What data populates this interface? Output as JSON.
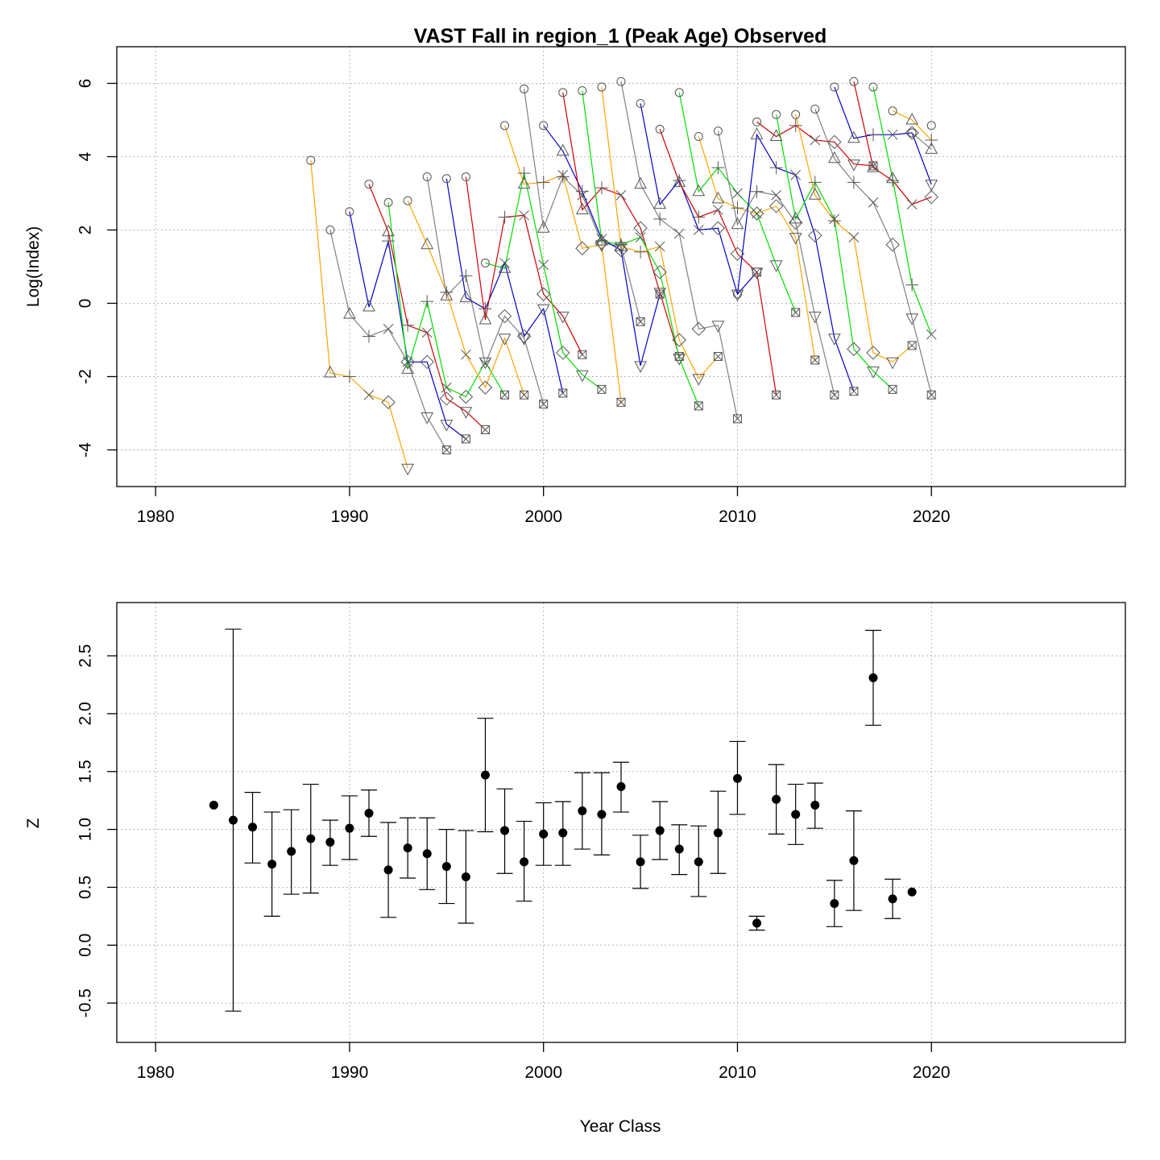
{
  "chart_data": [
    {
      "type": "line",
      "title": "VAST Fall in region_1 (Peak Age) Observed",
      "xlabel": "",
      "ylabel": "Log(Index)",
      "xlim": [
        1978,
        2030
      ],
      "ylim": [
        -5.0,
        7.0
      ],
      "xticks": [
        1980,
        1990,
        2000,
        2010,
        2020
      ],
      "yticks": [
        -4,
        -2,
        0,
        2,
        4,
        6
      ],
      "grid": true,
      "marker_sequence": [
        "circle",
        "triangle-up",
        "plus",
        "x",
        "diamond",
        "triangle-down",
        "boxed-x",
        "asterisk"
      ],
      "series": [
        {
          "color": "#FFA500",
          "x": [
            1988,
            1989,
            1990,
            1991,
            1992,
            1993
          ],
          "y": [
            3.9,
            -1.9,
            -2.0,
            -2.5,
            -2.7,
            -4.5
          ]
        },
        {
          "color": "#808080",
          "x": [
            1989,
            1990,
            1991,
            1992,
            1993,
            1994,
            1995
          ],
          "y": [
            2.0,
            -0.3,
            -0.9,
            -0.7,
            -1.6,
            -3.1,
            -4.0
          ]
        },
        {
          "color": "#0000CD",
          "x": [
            1990,
            1991,
            1992,
            1993,
            1994,
            1995,
            1996
          ],
          "y": [
            2.5,
            -0.1,
            1.7,
            -1.6,
            -1.6,
            -3.3,
            -3.7
          ]
        },
        {
          "color": "#D00000",
          "x": [
            1991,
            1992,
            1993,
            1994,
            1995,
            1996,
            1997
          ],
          "y": [
            3.25,
            1.95,
            -0.6,
            -0.8,
            -2.6,
            -2.95,
            -3.45
          ]
        },
        {
          "color": "#00DD00",
          "x": [
            1992,
            1993,
            1994,
            1995,
            1996,
            1997,
            1998
          ],
          "y": [
            2.75,
            -1.8,
            0.05,
            -2.3,
            -2.55,
            -1.6,
            -2.5
          ]
        },
        {
          "color": "#FFA500",
          "x": [
            1993,
            1994,
            1995,
            1996,
            1997,
            1998,
            1999
          ],
          "y": [
            2.8,
            1.6,
            0.3,
            -1.4,
            -2.3,
            -0.95,
            -2.5
          ]
        },
        {
          "color": "#808080",
          "x": [
            1994,
            1995,
            1996,
            1997,
            1998,
            1999,
            2000
          ],
          "y": [
            3.45,
            0.2,
            0.75,
            -1.65,
            -0.35,
            -0.95,
            -2.75
          ]
        },
        {
          "color": "#0000CD",
          "x": [
            1995,
            1996,
            1997,
            1998,
            1999,
            2000,
            2001
          ],
          "y": [
            3.4,
            0.15,
            -0.15,
            1.1,
            -0.9,
            -0.15,
            -2.45
          ]
        },
        {
          "color": "#D00000",
          "x": [
            1996,
            1997,
            1998,
            1999,
            2000,
            2001,
            2002
          ],
          "y": [
            3.45,
            -0.45,
            2.35,
            2.4,
            0.25,
            -0.35,
            -1.4
          ]
        },
        {
          "color": "#00DD00",
          "x": [
            1997,
            1998,
            1999,
            2000,
            2001,
            2002,
            2003
          ],
          "y": [
            1.1,
            0.95,
            3.55,
            1.05,
            -1.35,
            -1.95,
            -2.35
          ]
        },
        {
          "color": "#FFA500",
          "x": [
            1998,
            1999,
            2000,
            2001,
            2002,
            2003,
            2004
          ],
          "y": [
            4.85,
            3.25,
            3.3,
            3.5,
            1.5,
            1.6,
            -2.7
          ]
        },
        {
          "color": "#808080",
          "x": [
            1999,
            2000,
            2001,
            2002,
            2003,
            2004,
            2005
          ],
          "y": [
            5.85,
            2.05,
            3.45,
            2.95,
            1.65,
            1.55,
            -0.5
          ]
        },
        {
          "color": "#0000CD",
          "x": [
            2000,
            2001,
            2002,
            2003,
            2004,
            2005,
            2006
          ],
          "y": [
            4.85,
            4.15,
            3.05,
            1.75,
            1.45,
            -1.7,
            0.25
          ]
        },
        {
          "color": "#D00000",
          "x": [
            2001,
            2002,
            2003,
            2004,
            2005,
            2006,
            2007
          ],
          "y": [
            5.75,
            2.55,
            3.15,
            2.95,
            2.05,
            0.3,
            -1.45
          ]
        },
        {
          "color": "#00DD00",
          "x": [
            2002,
            2003,
            2004,
            2005,
            2006,
            2007,
            2008
          ],
          "y": [
            5.8,
            1.7,
            1.6,
            1.8,
            0.85,
            -1.5,
            -2.8
          ]
        },
        {
          "color": "#FFA500",
          "x": [
            2003,
            2004,
            2005,
            2006,
            2007,
            2008,
            2009
          ],
          "y": [
            5.9,
            1.55,
            1.4,
            1.55,
            -1.0,
            -2.05,
            -1.45
          ]
        },
        {
          "color": "#808080",
          "x": [
            2004,
            2005,
            2006,
            2007,
            2008,
            2009,
            2010
          ],
          "y": [
            6.05,
            3.25,
            2.3,
            1.9,
            -0.7,
            -0.6,
            -3.15
          ]
        },
        {
          "color": "#0000CD",
          "x": [
            2005,
            2006,
            2007,
            2008,
            2009,
            2010,
            2011
          ],
          "y": [
            5.45,
            2.7,
            3.35,
            2.0,
            2.05,
            0.25,
            0.85
          ]
        },
        {
          "color": "#D00000",
          "x": [
            2006,
            2007,
            2008,
            2009,
            2010,
            2011,
            2012
          ],
          "y": [
            4.75,
            3.3,
            2.35,
            2.55,
            1.35,
            0.85,
            -2.5
          ]
        },
        {
          "color": "#00DD00",
          "x": [
            2007,
            2008,
            2009,
            2010,
            2011,
            2012,
            2013
          ],
          "y": [
            5.75,
            3.05,
            3.7,
            3.0,
            2.45,
            1.05,
            -0.25
          ]
        },
        {
          "color": "#FFA500",
          "x": [
            2008,
            2009,
            2010,
            2011,
            2012,
            2013,
            2014
          ],
          "y": [
            4.55,
            2.85,
            2.6,
            2.45,
            2.65,
            1.8,
            -1.55
          ]
        },
        {
          "color": "#808080",
          "x": [
            2009,
            2010,
            2011,
            2012,
            2013,
            2014,
            2015
          ],
          "y": [
            4.7,
            2.15,
            3.05,
            2.95,
            2.2,
            -0.35,
            -2.5
          ]
        },
        {
          "color": "#0000CD",
          "x": [
            2010,
            2011,
            2012,
            2013,
            2014,
            2015,
            2016
          ],
          "y": [
            0.25,
            4.6,
            3.7,
            3.5,
            1.85,
            -0.95,
            -2.4
          ]
        },
        {
          "color": "#D00000",
          "x": [
            2011,
            2012,
            2013,
            2014,
            2015,
            2016,
            2017
          ],
          "y": [
            4.95,
            4.55,
            4.85,
            4.45,
            4.4,
            3.8,
            3.75
          ]
        },
        {
          "color": "#00DD00",
          "x": [
            2012,
            2013,
            2014,
            2015,
            2016,
            2017,
            2018
          ],
          "y": [
            5.15,
            2.3,
            3.3,
            2.3,
            -1.25,
            -1.85,
            -2.35
          ]
        },
        {
          "color": "#FFA500",
          "x": [
            2013,
            2014,
            2015,
            2016,
            2017,
            2018,
            2019
          ],
          "y": [
            5.15,
            2.95,
            2.25,
            1.8,
            -1.35,
            -1.6,
            -1.15
          ]
        },
        {
          "color": "#808080",
          "x": [
            2014,
            2015,
            2016,
            2017,
            2018,
            2019,
            2020
          ],
          "y": [
            5.3,
            3.95,
            3.3,
            2.75,
            1.6,
            -0.4,
            -2.5
          ]
        },
        {
          "color": "#0000CD",
          "x": [
            2015,
            2016,
            2017,
            2018,
            2019,
            2020
          ],
          "y": [
            5.9,
            4.5,
            4.6,
            4.6,
            4.65,
            3.25
          ]
        },
        {
          "color": "#D00000",
          "x": [
            2016,
            2017,
            2018,
            2019,
            2020
          ],
          "y": [
            6.05,
            3.7,
            3.35,
            2.7,
            2.9
          ]
        },
        {
          "color": "#00DD00",
          "x": [
            2017,
            2018,
            2019,
            2020
          ],
          "y": [
            5.9,
            3.4,
            0.5,
            -0.85
          ]
        },
        {
          "color": "#FFA500",
          "x": [
            2018,
            2019,
            2020
          ],
          "y": [
            5.25,
            5.0,
            4.45
          ]
        },
        {
          "color": "#808080",
          "x": [
            2019,
            2020
          ],
          "y": [
            4.65,
            4.2
          ]
        },
        {
          "color": "#0000CD",
          "x": [
            2020
          ],
          "y": [
            4.85
          ]
        }
      ]
    },
    {
      "type": "scatter",
      "title": "",
      "xlabel": "Year Class",
      "ylabel": "Z",
      "xlim": [
        1978,
        2030
      ],
      "ylim": [
        -0.84,
        2.96
      ],
      "xticks": [
        1980,
        1990,
        2000,
        2010,
        2020
      ],
      "yticks": [
        -0.5,
        0.0,
        0.5,
        1.0,
        1.5,
        2.0,
        2.5
      ],
      "ytick_labels": [
        "-0.5",
        "0.0",
        "0.5",
        "1.0",
        "1.5",
        "2.0",
        "2.5"
      ],
      "grid": true,
      "points": [
        {
          "x": 1983,
          "y": 1.21
        },
        {
          "x": 1984,
          "y": 1.08,
          "lo": -0.57,
          "hi": 2.73
        },
        {
          "x": 1985,
          "y": 1.02,
          "lo": 0.71,
          "hi": 1.32
        },
        {
          "x": 1986,
          "y": 0.7,
          "lo": 0.25,
          "hi": 1.15
        },
        {
          "x": 1987,
          "y": 0.81,
          "lo": 0.44,
          "hi": 1.17
        },
        {
          "x": 1988,
          "y": 0.92,
          "lo": 0.45,
          "hi": 1.39
        },
        {
          "x": 1989,
          "y": 0.89,
          "lo": 0.69,
          "hi": 1.08
        },
        {
          "x": 1990,
          "y": 1.01,
          "lo": 0.74,
          "hi": 1.29
        },
        {
          "x": 1991,
          "y": 1.14,
          "lo": 0.94,
          "hi": 1.34
        },
        {
          "x": 1992,
          "y": 0.65,
          "lo": 0.24,
          "hi": 1.06
        },
        {
          "x": 1993,
          "y": 0.84,
          "lo": 0.58,
          "hi": 1.1
        },
        {
          "x": 1994,
          "y": 0.79,
          "lo": 0.48,
          "hi": 1.1
        },
        {
          "x": 1995,
          "y": 0.68,
          "lo": 0.36,
          "hi": 1.0
        },
        {
          "x": 1996,
          "y": 0.59,
          "lo": 0.19,
          "hi": 0.99
        },
        {
          "x": 1997,
          "y": 1.47,
          "lo": 0.98,
          "hi": 1.96
        },
        {
          "x": 1998,
          "y": 0.99,
          "lo": 0.62,
          "hi": 1.35
        },
        {
          "x": 1999,
          "y": 0.72,
          "lo": 0.38,
          "hi": 1.07
        },
        {
          "x": 2000,
          "y": 0.96,
          "lo": 0.69,
          "hi": 1.23
        },
        {
          "x": 2001,
          "y": 0.97,
          "lo": 0.69,
          "hi": 1.24
        },
        {
          "x": 2002,
          "y": 1.16,
          "lo": 0.83,
          "hi": 1.49
        },
        {
          "x": 2003,
          "y": 1.13,
          "lo": 0.78,
          "hi": 1.49
        },
        {
          "x": 2004,
          "y": 1.37,
          "lo": 1.15,
          "hi": 1.58
        },
        {
          "x": 2005,
          "y": 0.72,
          "lo": 0.49,
          "hi": 0.95
        },
        {
          "x": 2006,
          "y": 0.99,
          "lo": 0.74,
          "hi": 1.24
        },
        {
          "x": 2007,
          "y": 0.83,
          "lo": 0.61,
          "hi": 1.04
        },
        {
          "x": 2008,
          "y": 0.72,
          "lo": 0.42,
          "hi": 1.03
        },
        {
          "x": 2009,
          "y": 0.97,
          "lo": 0.62,
          "hi": 1.33
        },
        {
          "x": 2010,
          "y": 1.44,
          "lo": 1.13,
          "hi": 1.76
        },
        {
          "x": 2011,
          "y": 0.19,
          "lo": 0.13,
          "hi": 0.25
        },
        {
          "x": 2012,
          "y": 1.26,
          "lo": 0.96,
          "hi": 1.56
        },
        {
          "x": 2013,
          "y": 1.13,
          "lo": 0.87,
          "hi": 1.39
        },
        {
          "x": 2014,
          "y": 1.21,
          "lo": 1.01,
          "hi": 1.4
        },
        {
          "x": 2015,
          "y": 0.36,
          "lo": 0.16,
          "hi": 0.56
        },
        {
          "x": 2016,
          "y": 0.73,
          "lo": 0.3,
          "hi": 1.16
        },
        {
          "x": 2017,
          "y": 2.31,
          "lo": 1.9,
          "hi": 2.72
        },
        {
          "x": 2018,
          "y": 0.4,
          "lo": 0.23,
          "hi": 0.57
        },
        {
          "x": 2019,
          "y": 0.46
        }
      ]
    }
  ]
}
